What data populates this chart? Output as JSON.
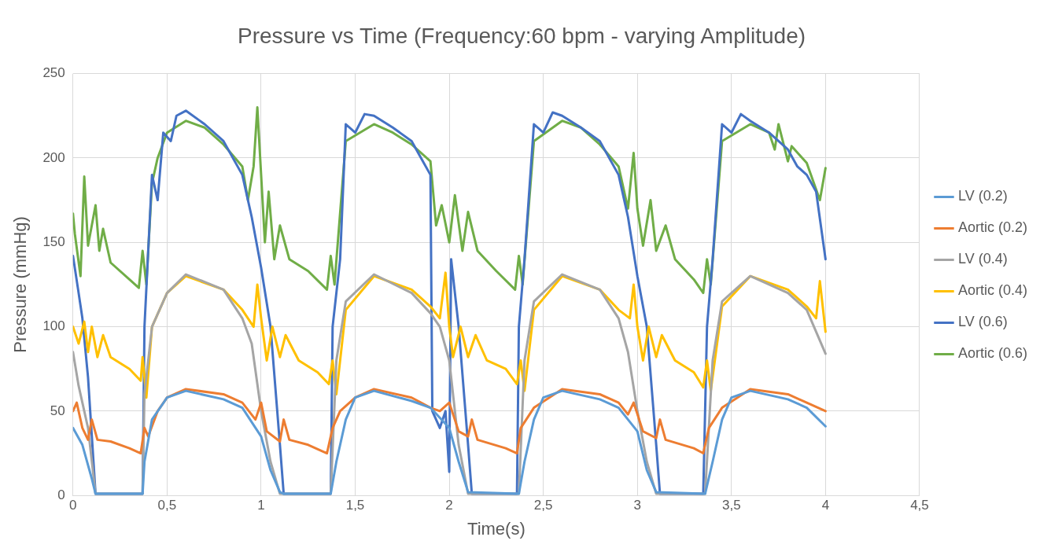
{
  "chart_data": {
    "type": "line",
    "title": "Pressure vs Time (Frequency:60 bpm - varying Amplitude)",
    "xlabel": "Time(s)",
    "ylabel": "Pressure (mmHg)",
    "xlim": [
      0,
      4.5
    ],
    "xticks": [
      0,
      {
        "value": 0.5,
        "label": "0,5"
      },
      1,
      {
        "value": 1.5,
        "label": "1,5"
      },
      2,
      {
        "value": 2.5,
        "label": "2,5"
      },
      3,
      {
        "value": 3.5,
        "label": "3,5"
      },
      4,
      {
        "value": 4.5,
        "label": "4,5"
      }
    ],
    "ylim": [
      0,
      250
    ],
    "yticks": [
      0,
      50,
      100,
      150,
      200,
      250
    ],
    "grid": true,
    "legend": "right",
    "marker": "none",
    "line_style": "solid",
    "series": [
      {
        "name": "LV (0.2)",
        "color": "#5b9bd5",
        "x": [
          0,
          0.05,
          0.1,
          0.12,
          0.37,
          0.38,
          0.42,
          0.5,
          0.6,
          0.8,
          0.9,
          1.0,
          1.05,
          1.1,
          1.12,
          1.37,
          1.4,
          1.45,
          1.5,
          1.6,
          1.8,
          1.9,
          2.0,
          2.05,
          2.1,
          2.37,
          2.4,
          2.45,
          2.5,
          2.6,
          2.8,
          2.9,
          3.0,
          3.05,
          3.1,
          3.36,
          3.4,
          3.45,
          3.5,
          3.6,
          3.8,
          3.9,
          4.0
        ],
        "values": [
          40,
          30,
          10,
          1,
          1,
          20,
          45,
          58,
          62,
          57,
          52,
          35,
          15,
          2,
          1,
          1,
          20,
          45,
          58,
          62,
          56,
          52,
          40,
          20,
          2,
          1,
          20,
          45,
          58,
          62,
          57,
          52,
          38,
          15,
          2,
          1,
          20,
          45,
          58,
          62,
          57,
          52,
          41
        ]
      },
      {
        "name": "Aortic (0.2)",
        "color": "#ed7d31",
        "x": [
          0,
          0.02,
          0.05,
          0.08,
          0.1,
          0.13,
          0.2,
          0.3,
          0.36,
          0.38,
          0.4,
          0.45,
          0.5,
          0.6,
          0.8,
          0.9,
          0.97,
          1.0,
          1.03,
          1.1,
          1.12,
          1.15,
          1.25,
          1.35,
          1.38,
          1.42,
          1.5,
          1.6,
          1.8,
          1.9,
          1.95,
          2.0,
          2.05,
          2.1,
          2.12,
          2.15,
          2.3,
          2.36,
          2.38,
          2.45,
          2.6,
          2.8,
          2.9,
          2.95,
          2.98,
          3.03,
          3.1,
          3.12,
          3.15,
          3.3,
          3.35,
          3.38,
          3.45,
          3.6,
          3.8,
          3.9,
          4.0
        ],
        "values": [
          50,
          55,
          40,
          33,
          45,
          33,
          32,
          28,
          25,
          40,
          35,
          50,
          58,
          63,
          60,
          55,
          45,
          55,
          38,
          32,
          45,
          33,
          30,
          25,
          40,
          50,
          58,
          63,
          58,
          52,
          50,
          55,
          38,
          35,
          45,
          33,
          28,
          25,
          40,
          52,
          63,
          60,
          55,
          48,
          55,
          38,
          34,
          45,
          33,
          28,
          25,
          40,
          52,
          63,
          60,
          55,
          50
        ]
      },
      {
        "name": "LV (0.4)",
        "color": "#a5a5a5",
        "x": [
          0,
          0.03,
          0.08,
          0.12,
          0.37,
          0.38,
          0.42,
          0.5,
          0.6,
          0.8,
          0.9,
          0.95,
          1.0,
          1.05,
          1.1,
          1.37,
          1.4,
          1.45,
          1.6,
          1.8,
          1.9,
          1.95,
          2.0,
          2.05,
          2.1,
          2.37,
          2.4,
          2.45,
          2.6,
          2.8,
          2.9,
          2.95,
          3.0,
          3.05,
          3.1,
          3.36,
          3.4,
          3.45,
          3.6,
          3.8,
          3.9,
          4.0
        ],
        "values": [
          85,
          65,
          40,
          1,
          1,
          60,
          100,
          120,
          131,
          122,
          105,
          90,
          50,
          20,
          1,
          1,
          80,
          115,
          131,
          120,
          108,
          100,
          80,
          30,
          1,
          1,
          80,
          115,
          131,
          122,
          105,
          85,
          50,
          20,
          1,
          1,
          80,
          115,
          130,
          120,
          110,
          84
        ]
      },
      {
        "name": "Aortic (0.4)",
        "color": "#ffc000",
        "x": [
          0,
          0.03,
          0.06,
          0.08,
          0.1,
          0.13,
          0.16,
          0.2,
          0.3,
          0.36,
          0.37,
          0.39,
          0.42,
          0.5,
          0.6,
          0.8,
          0.9,
          0.96,
          0.98,
          1.0,
          1.03,
          1.06,
          1.1,
          1.13,
          1.2,
          1.3,
          1.36,
          1.38,
          1.4,
          1.45,
          1.6,
          1.8,
          1.9,
          1.95,
          1.98,
          2.0,
          2.02,
          2.06,
          2.1,
          2.14,
          2.2,
          2.3,
          2.36,
          2.38,
          2.4,
          2.45,
          2.6,
          2.8,
          2.9,
          2.96,
          2.98,
          3.0,
          3.03,
          3.06,
          3.1,
          3.13,
          3.2,
          3.3,
          3.35,
          3.37,
          3.39,
          3.45,
          3.6,
          3.8,
          3.9,
          3.95,
          3.97,
          4.0
        ],
        "values": [
          100,
          90,
          103,
          85,
          100,
          82,
          95,
          82,
          75,
          68,
          82,
          58,
          100,
          120,
          130,
          122,
          110,
          100,
          125,
          105,
          80,
          100,
          82,
          95,
          80,
          73,
          66,
          80,
          60,
          110,
          130,
          122,
          112,
          105,
          132,
          100,
          82,
          100,
          82,
          95,
          80,
          75,
          66,
          80,
          62,
          110,
          130,
          122,
          110,
          105,
          125,
          100,
          80,
          100,
          82,
          95,
          80,
          73,
          64,
          80,
          62,
          112,
          130,
          122,
          112,
          105,
          127,
          97
        ]
      },
      {
        "name": "LV (0.6)",
        "color": "#4472c4",
        "x": [
          0,
          0.03,
          0.05,
          0.08,
          0.12,
          0.37,
          0.38,
          0.42,
          0.45,
          0.48,
          0.52,
          0.55,
          0.6,
          0.7,
          0.8,
          0.9,
          0.95,
          1.0,
          1.05,
          1.1,
          1.12,
          1.37,
          1.38,
          1.42,
          1.45,
          1.5,
          1.55,
          1.6,
          1.7,
          1.8,
          1.85,
          1.9,
          1.91,
          1.95,
          1.98,
          2.0,
          2.01,
          2.05,
          2.1,
          2.12,
          2.36,
          2.37,
          2.4,
          2.45,
          2.5,
          2.55,
          2.6,
          2.7,
          2.8,
          2.9,
          2.95,
          3.0,
          3.05,
          3.1,
          3.12,
          3.35,
          3.37,
          3.4,
          3.45,
          3.5,
          3.55,
          3.6,
          3.7,
          3.8,
          3.85,
          3.9,
          3.95,
          4.0
        ],
        "values": [
          142,
          120,
          105,
          70,
          1,
          1,
          100,
          190,
          175,
          215,
          210,
          225,
          228,
          220,
          210,
          190,
          165,
          135,
          100,
          30,
          1,
          1,
          100,
          140,
          220,
          215,
          226,
          225,
          218,
          210,
          200,
          190,
          50,
          40,
          50,
          14,
          140,
          100,
          30,
          1,
          1,
          100,
          140,
          220,
          215,
          227,
          225,
          218,
          210,
          190,
          165,
          130,
          100,
          30,
          1,
          1,
          100,
          140,
          220,
          215,
          226,
          222,
          215,
          205,
          195,
          190,
          180,
          140
        ]
      },
      {
        "name": "Aortic (0.6)",
        "color": "#70ad47",
        "x": [
          0,
          0.01,
          0.04,
          0.06,
          0.08,
          0.12,
          0.14,
          0.16,
          0.2,
          0.3,
          0.35,
          0.37,
          0.39,
          0.42,
          0.45,
          0.5,
          0.6,
          0.7,
          0.8,
          0.9,
          0.93,
          0.96,
          0.98,
          1.0,
          1.02,
          1.04,
          1.07,
          1.1,
          1.15,
          1.25,
          1.35,
          1.37,
          1.39,
          1.45,
          1.6,
          1.7,
          1.8,
          1.9,
          1.93,
          1.96,
          2.0,
          2.03,
          2.07,
          2.1,
          2.15,
          2.25,
          2.35,
          2.37,
          2.39,
          2.45,
          2.6,
          2.7,
          2.8,
          2.9,
          2.95,
          2.98,
          3.0,
          3.03,
          3.07,
          3.1,
          3.15,
          3.2,
          3.3,
          3.35,
          3.37,
          3.39,
          3.45,
          3.6,
          3.7,
          3.73,
          3.75,
          3.8,
          3.82,
          3.9,
          3.97,
          4.0
        ],
        "values": [
          167,
          155,
          130,
          189,
          148,
          172,
          145,
          158,
          138,
          128,
          123,
          145,
          125,
          185,
          200,
          215,
          222,
          218,
          208,
          195,
          175,
          195,
          230,
          190,
          150,
          180,
          140,
          160,
          140,
          133,
          122,
          142,
          125,
          210,
          220,
          215,
          208,
          198,
          160,
          172,
          150,
          178,
          145,
          168,
          145,
          133,
          122,
          142,
          125,
          210,
          222,
          218,
          208,
          195,
          170,
          203,
          170,
          148,
          175,
          145,
          160,
          140,
          128,
          120,
          140,
          125,
          210,
          220,
          215,
          205,
          220,
          198,
          207,
          197,
          175,
          194
        ]
      }
    ]
  }
}
